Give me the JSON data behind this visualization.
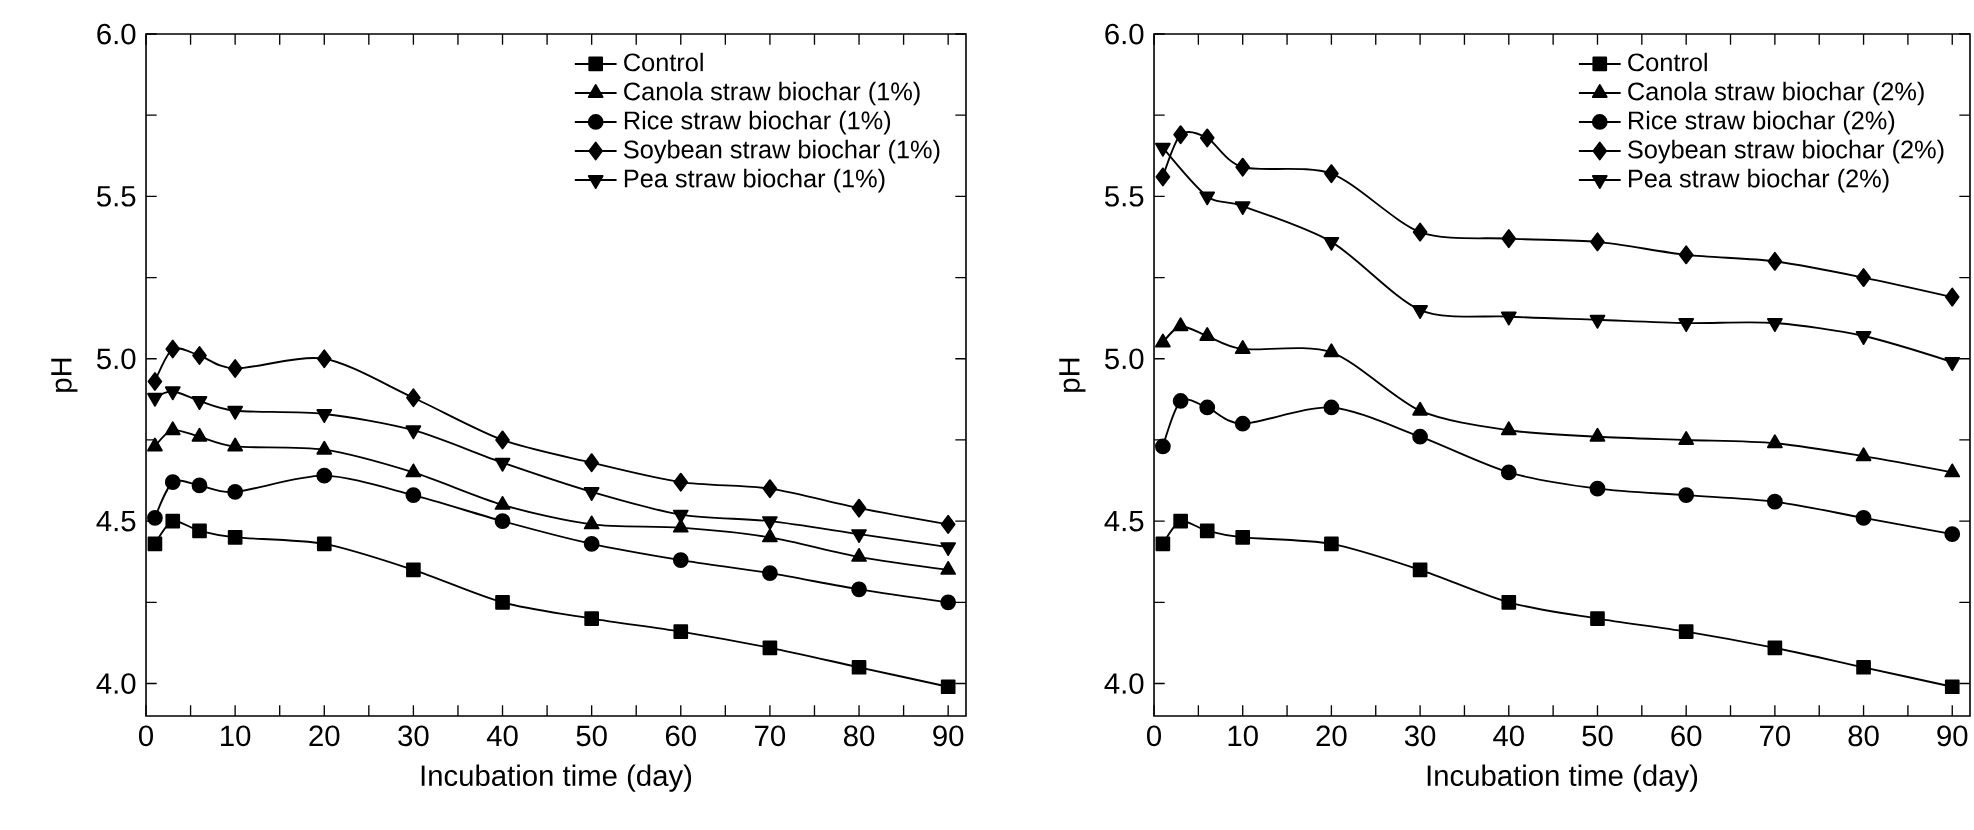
{
  "chart_data": [
    {
      "type": "line",
      "xlabel": "Incubation time (day)",
      "ylabel": "pH",
      "legend": "top right",
      "x": [
        1,
        3,
        6,
        10,
        20,
        30,
        40,
        50,
        60,
        70,
        80,
        90
      ],
      "xlim": [
        0,
        92
      ],
      "ylim": [
        3.9,
        6.0
      ],
      "xticks": [
        0,
        {
          "value": 5,
          "label": null
        },
        10,
        {
          "value": 15,
          "label": null
        },
        20,
        {
          "value": 25,
          "label": null
        },
        30,
        {
          "value": 35,
          "label": null
        },
        40,
        {
          "value": 45,
          "label": null
        },
        50,
        {
          "value": 55,
          "label": null
        },
        60,
        {
          "value": 65,
          "label": null
        },
        70,
        {
          "value": 75,
          "label": null
        },
        80,
        {
          "value": 85,
          "label": null
        },
        90
      ],
      "yticks": [
        {
          "value": 4.0,
          "label": "4.0"
        },
        {
          "value": 4.25,
          "label": null
        },
        {
          "value": 4.5,
          "label": "4.5"
        },
        {
          "value": 4.75,
          "label": null
        },
        {
          "value": 5.0,
          "label": "5.0"
        },
        {
          "value": 5.25,
          "label": null
        },
        {
          "value": 5.5,
          "label": "5.5"
        },
        {
          "value": 5.75,
          "label": null
        },
        {
          "value": 6.0,
          "label": "6.0"
        }
      ],
      "series": [
        {
          "name": "Control",
          "color": "#000000",
          "marker": "square",
          "values": [
            4.43,
            4.5,
            4.47,
            4.45,
            4.43,
            4.35,
            4.25,
            4.2,
            4.16,
            4.11,
            4.05,
            3.99
          ]
        },
        {
          "name": "Canola straw biochar (1%)",
          "color": "#000000",
          "marker": "triangle",
          "values": [
            4.73,
            4.78,
            4.76,
            4.73,
            4.72,
            4.65,
            4.55,
            4.49,
            4.48,
            4.45,
            4.39,
            4.35
          ]
        },
        {
          "name": "Rice straw biochar (1%)",
          "color": "#000000",
          "marker": "circle",
          "values": [
            4.51,
            4.62,
            4.61,
            4.59,
            4.64,
            4.58,
            4.5,
            4.43,
            4.38,
            4.34,
            4.29,
            4.25
          ]
        },
        {
          "name": "Soybean straw biochar (1%)",
          "color": "#000000",
          "marker": "diamond",
          "values": [
            4.93,
            5.03,
            5.01,
            4.97,
            5.0,
            4.88,
            4.75,
            4.68,
            4.62,
            4.6,
            4.54,
            4.49
          ]
        },
        {
          "name": "Pea straw biochar (1%)",
          "color": "#000000",
          "marker": "triangle-down",
          "values": [
            4.88,
            4.9,
            4.87,
            4.84,
            4.83,
            4.78,
            4.68,
            4.59,
            4.52,
            4.5,
            4.46,
            4.42
          ]
        }
      ]
    },
    {
      "type": "line",
      "xlabel": "Incubation time (day)",
      "ylabel": "pH",
      "legend": "top right",
      "x": [
        1,
        3,
        6,
        10,
        20,
        30,
        40,
        50,
        60,
        70,
        80,
        90
      ],
      "xlim": [
        0,
        92
      ],
      "ylim": [
        3.9,
        6.0
      ],
      "xticks": [
        0,
        {
          "value": 5,
          "label": null
        },
        10,
        {
          "value": 15,
          "label": null
        },
        20,
        {
          "value": 25,
          "label": null
        },
        30,
        {
          "value": 35,
          "label": null
        },
        40,
        {
          "value": 45,
          "label": null
        },
        50,
        {
          "value": 55,
          "label": null
        },
        60,
        {
          "value": 65,
          "label": null
        },
        70,
        {
          "value": 75,
          "label": null
        },
        80,
        {
          "value": 85,
          "label": null
        },
        90
      ],
      "yticks": [
        {
          "value": 4.0,
          "label": "4.0"
        },
        {
          "value": 4.25,
          "label": null
        },
        {
          "value": 4.5,
          "label": "4.5"
        },
        {
          "value": 4.75,
          "label": null
        },
        {
          "value": 5.0,
          "label": "5.0"
        },
        {
          "value": 5.25,
          "label": null
        },
        {
          "value": 5.5,
          "label": "5.5"
        },
        {
          "value": 5.75,
          "label": null
        },
        {
          "value": 6.0,
          "label": "6.0"
        }
      ],
      "series": [
        {
          "name": "Control",
          "color": "#000000",
          "marker": "square",
          "values": [
            4.43,
            4.5,
            4.47,
            4.45,
            4.43,
            4.35,
            4.25,
            4.2,
            4.16,
            4.11,
            4.05,
            3.99
          ]
        },
        {
          "name": "Canola straw biochar (2%)",
          "color": "#000000",
          "marker": "triangle",
          "values": [
            5.05,
            5.1,
            5.07,
            5.03,
            5.02,
            4.84,
            4.78,
            4.76,
            4.75,
            4.74,
            4.7,
            4.65
          ]
        },
        {
          "name": "Rice straw biochar (2%)",
          "color": "#000000",
          "marker": "circle",
          "values": [
            4.73,
            4.87,
            4.85,
            4.8,
            4.85,
            4.76,
            4.65,
            4.6,
            4.58,
            4.56,
            4.51,
            4.46
          ]
        },
        {
          "name": "Soybean straw biochar (2%)",
          "color": "#000000",
          "marker": "diamond",
          "values": [
            5.56,
            5.69,
            5.68,
            5.59,
            5.57,
            5.39,
            5.37,
            5.36,
            5.32,
            5.3,
            5.25,
            5.19
          ]
        },
        {
          "name": "Pea straw biochar (2%)",
          "color": "#000000",
          "marker": "triangle-down",
          "values": [
            5.65,
            null,
            5.5,
            5.47,
            5.36,
            5.15,
            5.13,
            5.12,
            5.11,
            5.11,
            5.07,
            4.99
          ]
        }
      ]
    }
  ]
}
